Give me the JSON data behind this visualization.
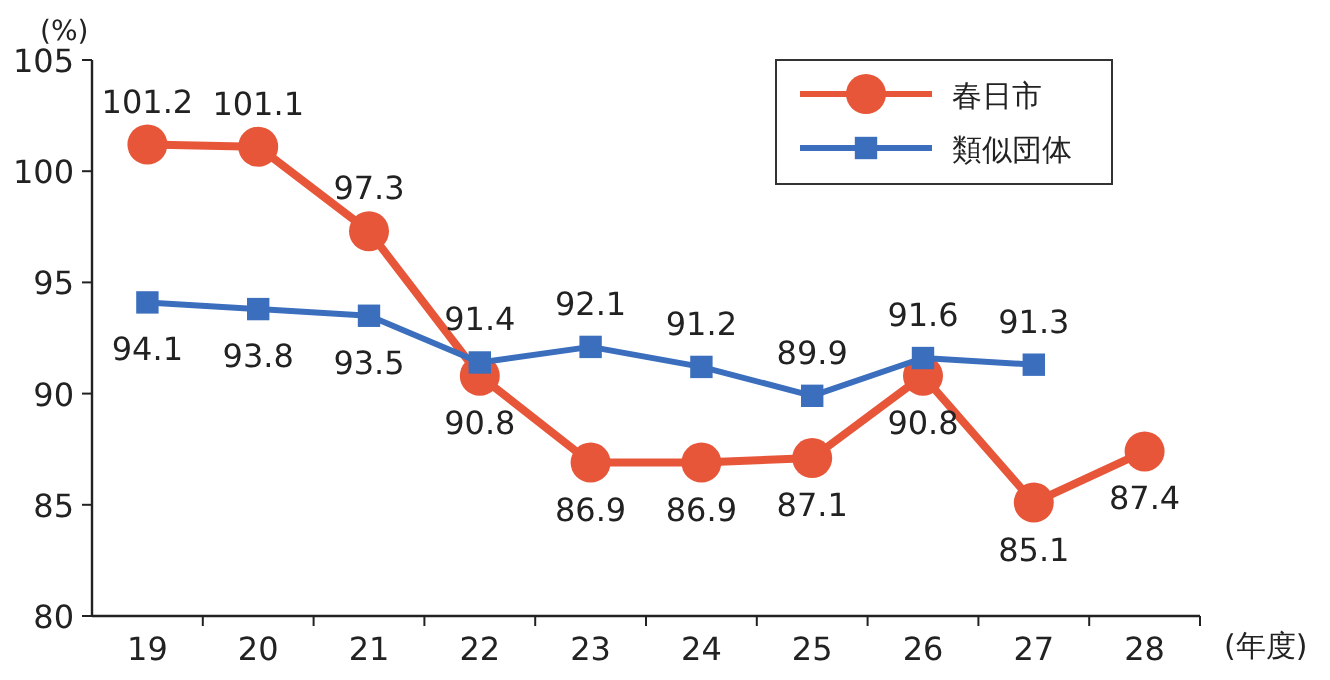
{
  "chart_data": {
    "type": "line",
    "ylabel": "(%)",
    "xlabel": "(年度)",
    "categories": [
      "19",
      "20",
      "21",
      "22",
      "23",
      "24",
      "25",
      "26",
      "27",
      "28"
    ],
    "series": [
      {
        "name": "春日市",
        "color": "#e8563a",
        "marker": "circle",
        "values": [
          101.2,
          101.1,
          97.3,
          90.8,
          86.9,
          86.9,
          87.1,
          90.8,
          85.1,
          87.4
        ]
      },
      {
        "name": "類似団体",
        "color": "#3b6fbe",
        "marker": "square",
        "values": [
          94.1,
          93.8,
          93.5,
          91.4,
          92.1,
          91.2,
          89.9,
          91.6,
          91.3,
          null
        ]
      }
    ],
    "ylim": [
      80,
      105
    ],
    "yticks": [
      80,
      85,
      90,
      95,
      100,
      105
    ],
    "grid": false,
    "legend": "top right",
    "data_labels": true
  }
}
